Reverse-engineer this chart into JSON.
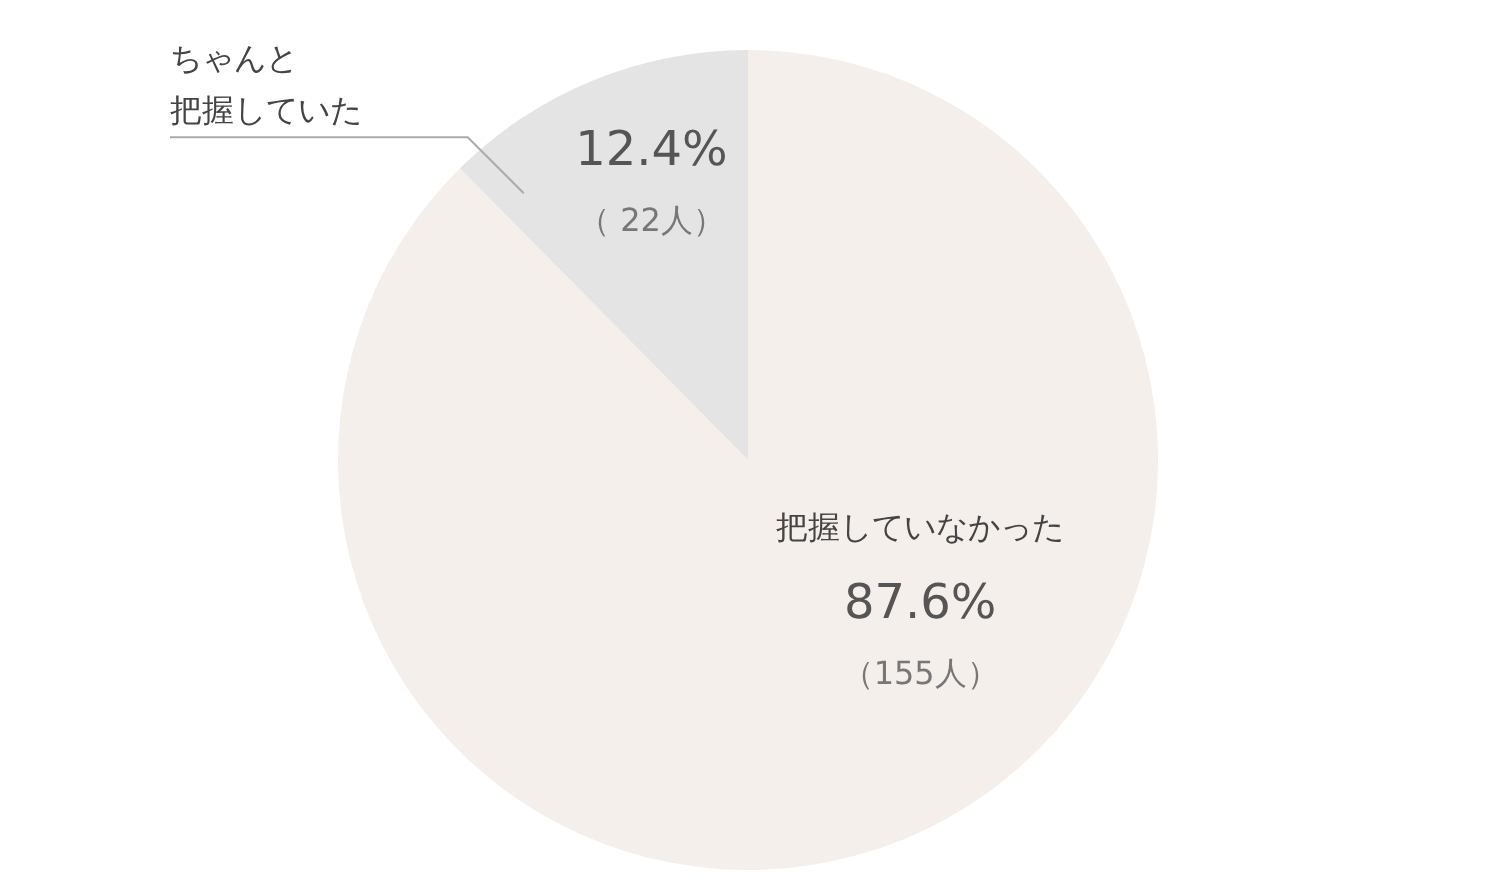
{
  "chart_data": {
    "type": "pie",
    "categories": [
      "把握していなかった",
      "ちゃんと把握していた"
    ],
    "values": [
      87.6,
      12.4
    ],
    "colors": [
      "#f4efea",
      "#e4e4e4"
    ],
    "value_labels": [
      "87.6%\n（155人）",
      "12.4%\n（ 22人）"
    ]
  }
}
